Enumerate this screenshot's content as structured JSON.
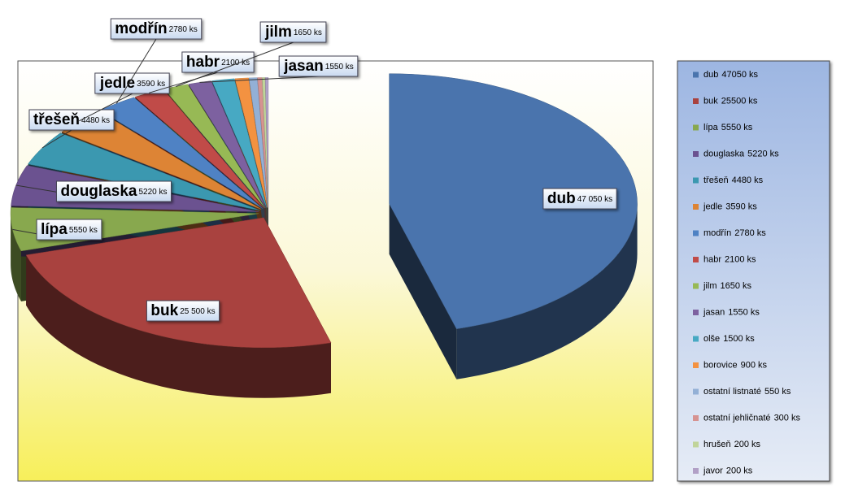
{
  "chart_data": {
    "type": "pie",
    "categories": [
      "dub",
      "buk",
      "lípa",
      "douglaska",
      "třešeň",
      "jedle",
      "modřín",
      "habr",
      "jilm",
      "jasan",
      "olše",
      "borovice",
      "ostatní listnaté",
      "ostatní jehličnaté",
      "hrušeň",
      "javor"
    ],
    "values": [
      47050,
      25500,
      5550,
      5220,
      4480,
      3590,
      2780,
      2100,
      1650,
      1550,
      1500,
      900,
      550,
      300,
      200,
      200
    ],
    "value_labels": [
      "47 050 ks",
      "25 500 ks",
      "5550 ks",
      "5220 ks",
      "4480 ks",
      "3590 ks",
      "2780 ks",
      "2100 ks",
      "1650 ks",
      "1550 ks",
      null,
      null,
      null,
      null,
      null,
      null
    ],
    "legend_value_labels": [
      "47050 ks",
      "25500 ks",
      "5550 ks",
      "5220 ks",
      "4480 ks",
      "3590 ks",
      "2780 ks",
      "2100 ks",
      "1650 ks",
      "1550 ks",
      "1500 ks",
      "900 ks",
      "550 ks",
      "300 ks",
      "200 ks",
      "200 ks"
    ],
    "colors": [
      "#4a74ad",
      "#a9423f",
      "#88a84e",
      "#6b5290",
      "#3b98b0",
      "#dd8435",
      "#4f82c4",
      "#c04b48",
      "#97b955",
      "#7d61a0",
      "#47a9c3",
      "#f39241",
      "#93b0d6",
      "#d69391",
      "#c0d49a",
      "#b1a0c6"
    ],
    "legend_position": "right"
  }
}
